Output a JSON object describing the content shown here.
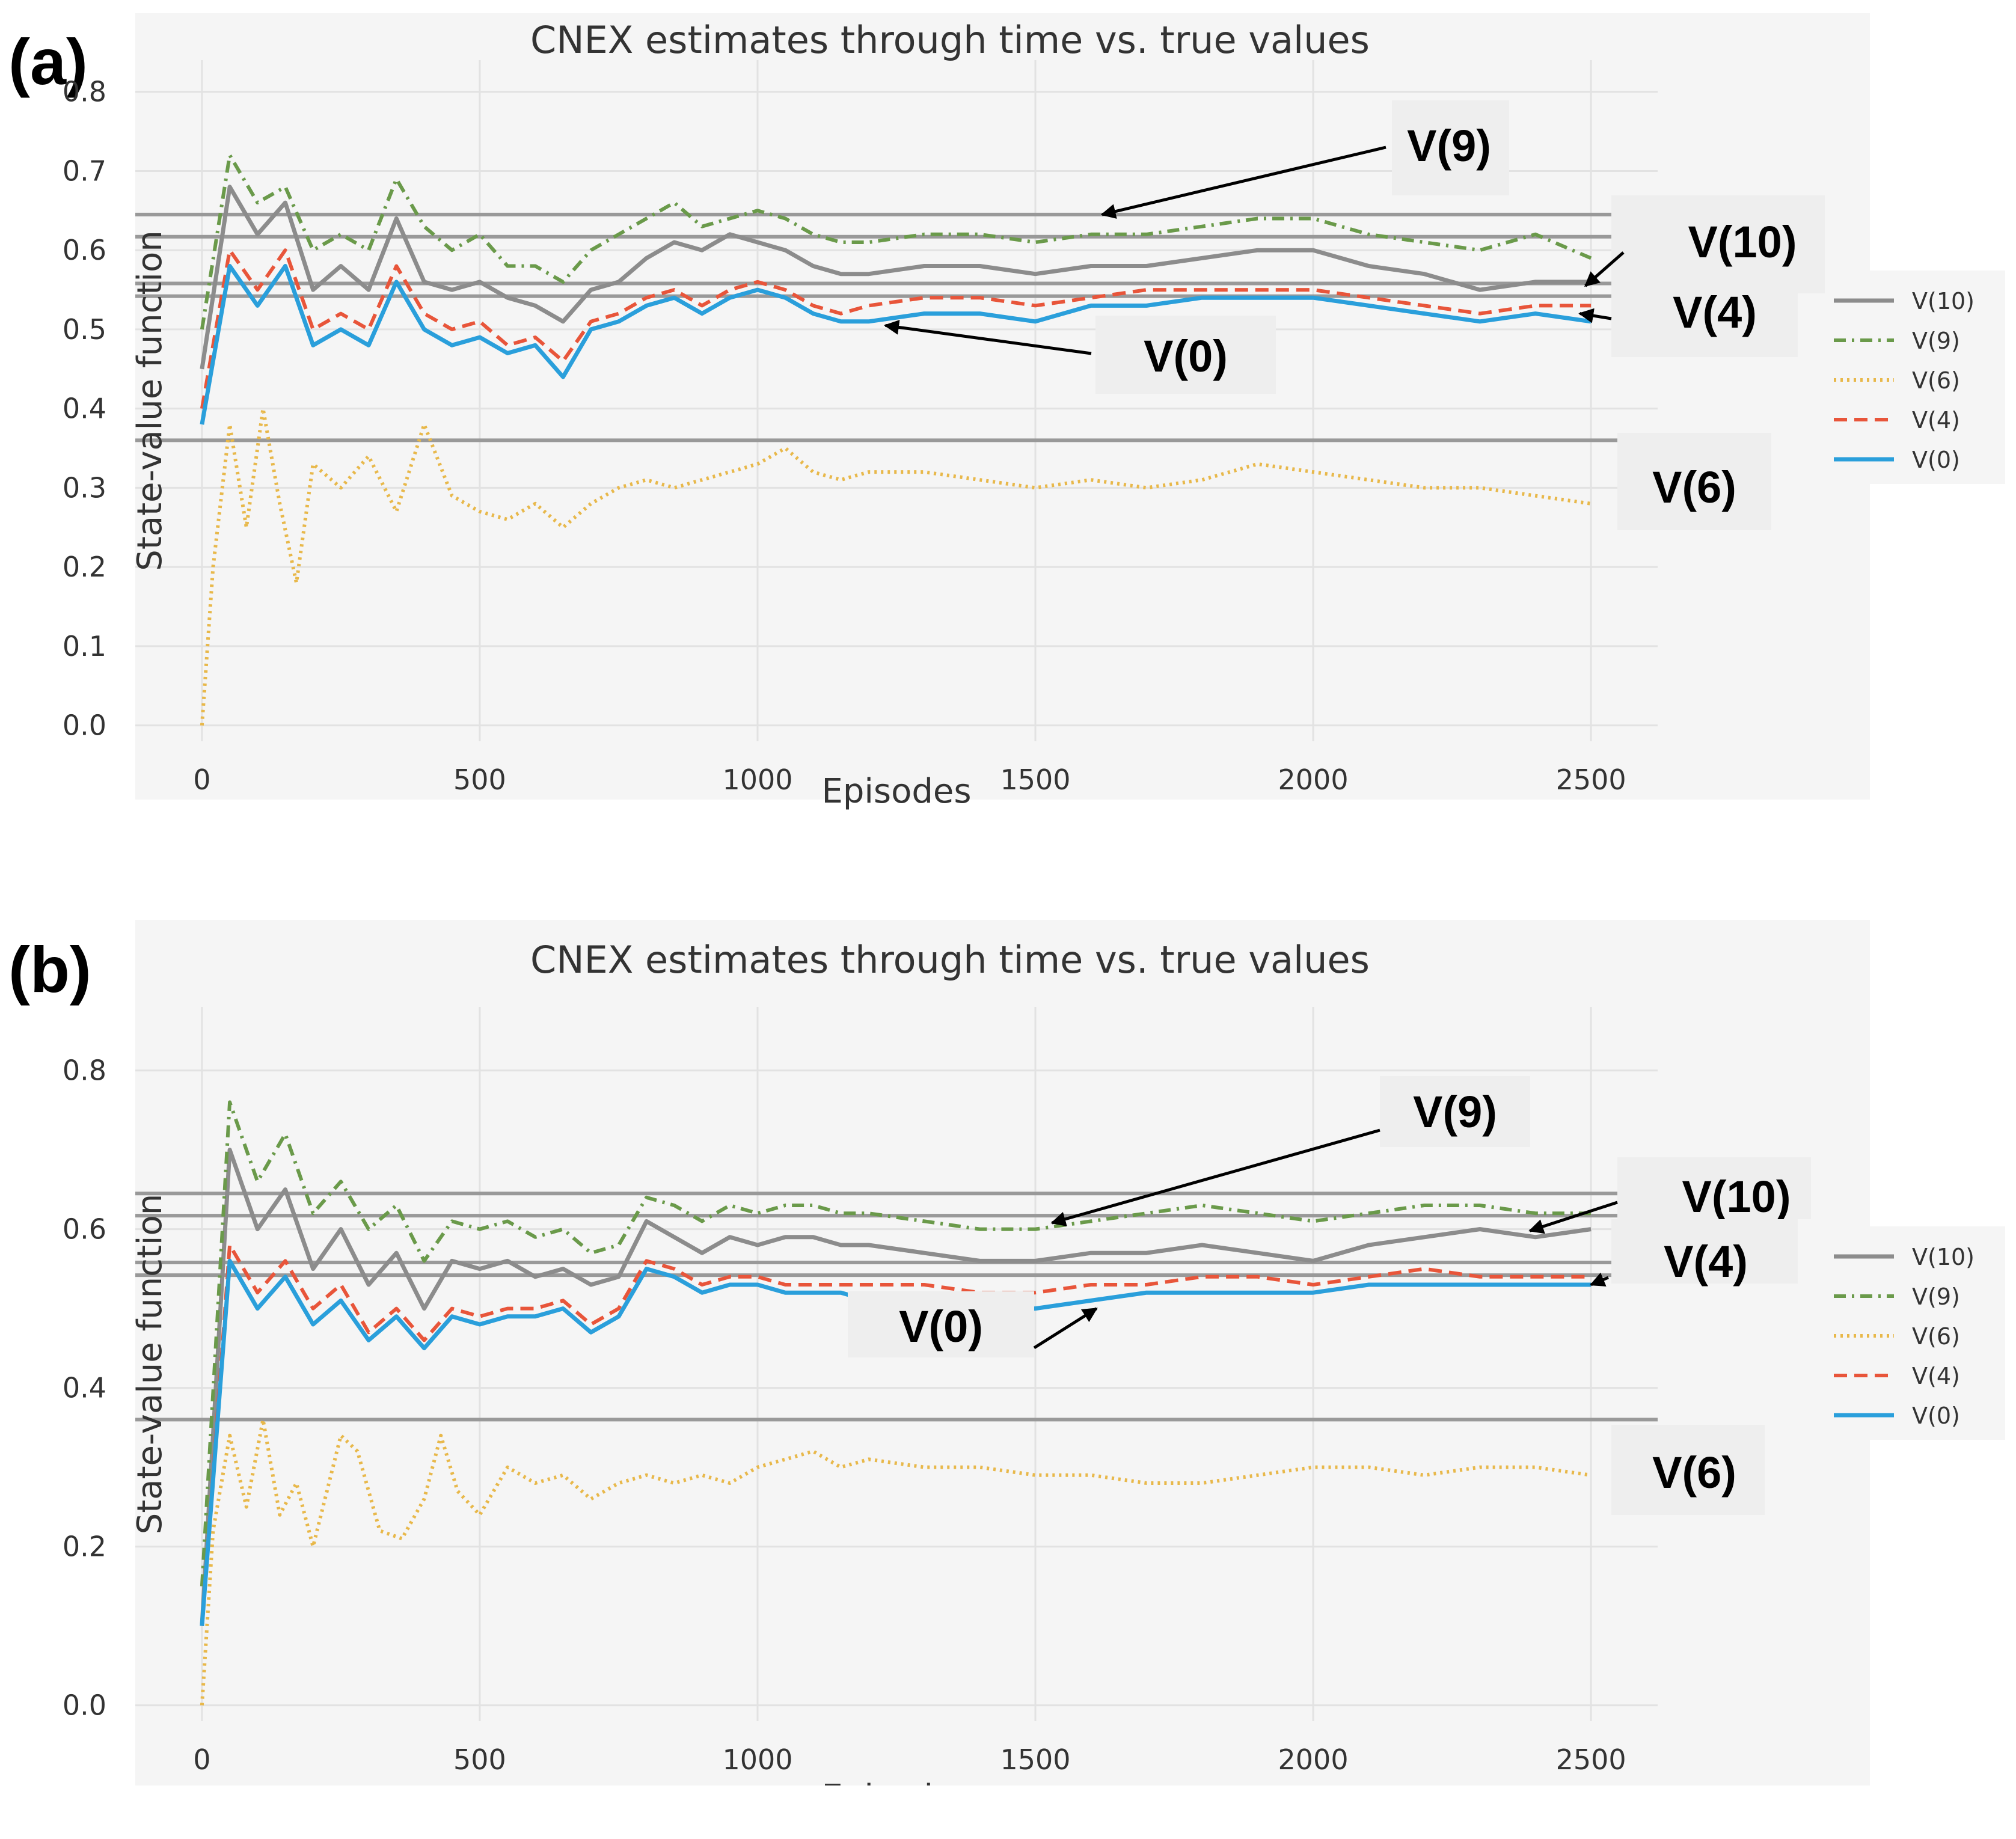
{
  "colors": {
    "v10": "#8c8c8c",
    "v9": "#6a9a4a",
    "v6": "#e8b84a",
    "v4": "#e8553a",
    "v0": "#2a9fdb",
    "true_line": "#999999"
  },
  "chart_data": [
    {
      "type": "line",
      "panel": "(a)",
      "title": "CNEX estimates through time vs. true values",
      "xlabel": "Episodes",
      "ylabel": "State-value function",
      "xlim": [
        -120,
        2620
      ],
      "ylim": [
        -0.02,
        0.84
      ],
      "xticks": [
        0,
        500,
        1000,
        1500,
        2000,
        2500
      ],
      "xtick_labels": [
        "0",
        "500",
        "1000",
        "1500",
        "2000",
        "2500"
      ],
      "yticks": [
        0.0,
        0.1,
        0.2,
        0.3,
        0.4,
        0.5,
        0.6,
        0.7,
        0.8
      ],
      "ytick_labels": [
        "0.0",
        "0.1",
        "0.2",
        "0.3",
        "0.4",
        "0.5",
        "0.6",
        "0.7",
        "0.8"
      ],
      "true_values": [
        0.645,
        0.617,
        0.558,
        0.542,
        0.36
      ],
      "series": [
        {
          "name": "V(10)",
          "key": "v10",
          "dash": "",
          "width": 7,
          "x": [
            0,
            50,
            100,
            150,
            200,
            250,
            300,
            350,
            400,
            450,
            500,
            550,
            600,
            650,
            700,
            750,
            800,
            850,
            900,
            950,
            1000,
            1050,
            1100,
            1150,
            1200,
            1300,
            1400,
            1500,
            1600,
            1700,
            1800,
            1900,
            2000,
            2100,
            2200,
            2300,
            2400,
            2500
          ],
          "y": [
            0.45,
            0.68,
            0.62,
            0.66,
            0.55,
            0.58,
            0.55,
            0.64,
            0.56,
            0.55,
            0.56,
            0.54,
            0.53,
            0.51,
            0.55,
            0.56,
            0.59,
            0.61,
            0.6,
            0.62,
            0.61,
            0.6,
            0.58,
            0.57,
            0.57,
            0.58,
            0.58,
            0.57,
            0.58,
            0.58,
            0.59,
            0.6,
            0.6,
            0.58,
            0.57,
            0.55,
            0.56,
            0.56
          ]
        },
        {
          "name": "V(9)",
          "key": "v9",
          "dash": "20 10 4 10",
          "width": 6,
          "x": [
            0,
            50,
            100,
            150,
            200,
            250,
            300,
            350,
            400,
            450,
            500,
            550,
            600,
            650,
            700,
            750,
            800,
            850,
            900,
            950,
            1000,
            1050,
            1100,
            1150,
            1200,
            1300,
            1400,
            1500,
            1600,
            1700,
            1800,
            1900,
            2000,
            2100,
            2200,
            2300,
            2400,
            2500
          ],
          "y": [
            0.5,
            0.72,
            0.66,
            0.68,
            0.6,
            0.62,
            0.6,
            0.69,
            0.63,
            0.6,
            0.62,
            0.58,
            0.58,
            0.56,
            0.6,
            0.62,
            0.64,
            0.66,
            0.63,
            0.64,
            0.65,
            0.64,
            0.62,
            0.61,
            0.61,
            0.62,
            0.62,
            0.61,
            0.62,
            0.62,
            0.63,
            0.64,
            0.64,
            0.62,
            0.61,
            0.6,
            0.62,
            0.59
          ]
        },
        {
          "name": "V(6)",
          "key": "v6",
          "dash": "4 7",
          "width": 6,
          "x": [
            0,
            20,
            50,
            80,
            110,
            140,
            170,
            200,
            250,
            300,
            350,
            400,
            450,
            500,
            550,
            600,
            650,
            700,
            750,
            800,
            850,
            900,
            950,
            1000,
            1050,
            1100,
            1150,
            1200,
            1300,
            1400,
            1500,
            1600,
            1700,
            1800,
            1900,
            2000,
            2100,
            2200,
            2300,
            2400,
            2500
          ],
          "y": [
            0.0,
            0.2,
            0.38,
            0.25,
            0.4,
            0.28,
            0.18,
            0.33,
            0.3,
            0.34,
            0.27,
            0.38,
            0.29,
            0.27,
            0.26,
            0.28,
            0.25,
            0.28,
            0.3,
            0.31,
            0.3,
            0.31,
            0.32,
            0.33,
            0.35,
            0.32,
            0.31,
            0.32,
            0.32,
            0.31,
            0.3,
            0.31,
            0.3,
            0.31,
            0.33,
            0.32,
            0.31,
            0.3,
            0.3,
            0.29,
            0.28
          ]
        },
        {
          "name": "V(4)",
          "key": "v4",
          "dash": "22 12",
          "width": 6,
          "x": [
            0,
            50,
            100,
            150,
            200,
            250,
            300,
            350,
            400,
            450,
            500,
            550,
            600,
            650,
            700,
            750,
            800,
            850,
            900,
            950,
            1000,
            1050,
            1100,
            1150,
            1200,
            1300,
            1400,
            1500,
            1600,
            1700,
            1800,
            1900,
            2000,
            2100,
            2200,
            2300,
            2400,
            2500
          ],
          "y": [
            0.4,
            0.6,
            0.55,
            0.6,
            0.5,
            0.52,
            0.5,
            0.58,
            0.52,
            0.5,
            0.51,
            0.48,
            0.49,
            0.46,
            0.51,
            0.52,
            0.54,
            0.55,
            0.53,
            0.55,
            0.56,
            0.55,
            0.53,
            0.52,
            0.53,
            0.54,
            0.54,
            0.53,
            0.54,
            0.55,
            0.55,
            0.55,
            0.55,
            0.54,
            0.53,
            0.52,
            0.53,
            0.53
          ]
        },
        {
          "name": "V(0)",
          "key": "v0",
          "dash": "",
          "width": 7,
          "x": [
            0,
            50,
            100,
            150,
            200,
            250,
            300,
            350,
            400,
            450,
            500,
            550,
            600,
            650,
            700,
            750,
            800,
            850,
            900,
            950,
            1000,
            1050,
            1100,
            1150,
            1200,
            1300,
            1400,
            1500,
            1600,
            1700,
            1800,
            1900,
            2000,
            2100,
            2200,
            2300,
            2400,
            2500
          ],
          "y": [
            0.38,
            0.58,
            0.53,
            0.58,
            0.48,
            0.5,
            0.48,
            0.56,
            0.5,
            0.48,
            0.49,
            0.47,
            0.48,
            0.44,
            0.5,
            0.51,
            0.53,
            0.54,
            0.52,
            0.54,
            0.55,
            0.54,
            0.52,
            0.51,
            0.51,
            0.52,
            0.52,
            0.51,
            0.53,
            0.53,
            0.54,
            0.54,
            0.54,
            0.53,
            0.52,
            0.51,
            0.52,
            0.51
          ]
        }
      ],
      "legend": [
        "V(10)",
        "V(9)",
        "V(6)",
        "V(4)",
        "V(0)"
      ],
      "annotations": [
        {
          "text": "V(9)",
          "x": 1620,
          "y": 0.645
        },
        {
          "text": "V(10)",
          "x": 2490,
          "y": 0.555
        },
        {
          "text": "V(4)",
          "x": 2480,
          "y": 0.52
        },
        {
          "text": "V(0)",
          "x": 1230,
          "y": 0.505
        },
        {
          "text": "V(6)"
        }
      ]
    },
    {
      "type": "line",
      "panel": "(b)",
      "title": "CNEX estimates through time vs. true values",
      "xlabel": "Episodes",
      "ylabel": "State-value function",
      "xlim": [
        -120,
        2620
      ],
      "ylim": [
        -0.02,
        0.88
      ],
      "xticks": [
        0,
        500,
        1000,
        1500,
        2000,
        2500
      ],
      "xtick_labels": [
        "0",
        "500",
        "1000",
        "1500",
        "2000",
        "2500"
      ],
      "yticks": [
        0.0,
        0.2,
        0.4,
        0.6,
        0.8
      ],
      "ytick_labels": [
        "0.0",
        "0.2",
        "0.4",
        "0.6",
        "0.8"
      ],
      "true_values": [
        0.645,
        0.617,
        0.558,
        0.542,
        0.36
      ],
      "series": [
        {
          "name": "V(10)",
          "key": "v10",
          "dash": "",
          "width": 7,
          "x": [
            0,
            50,
            100,
            150,
            200,
            250,
            300,
            350,
            400,
            450,
            500,
            550,
            600,
            650,
            700,
            750,
            800,
            850,
            900,
            950,
            1000,
            1050,
            1100,
            1150,
            1200,
            1300,
            1400,
            1500,
            1600,
            1700,
            1800,
            1900,
            2000,
            2100,
            2200,
            2300,
            2400,
            2500
          ],
          "y": [
            0.1,
            0.7,
            0.6,
            0.65,
            0.55,
            0.6,
            0.53,
            0.57,
            0.5,
            0.56,
            0.55,
            0.56,
            0.54,
            0.55,
            0.53,
            0.54,
            0.61,
            0.59,
            0.57,
            0.59,
            0.58,
            0.59,
            0.59,
            0.58,
            0.58,
            0.57,
            0.56,
            0.56,
            0.57,
            0.57,
            0.58,
            0.57,
            0.56,
            0.58,
            0.59,
            0.6,
            0.59,
            0.6
          ]
        },
        {
          "name": "V(9)",
          "key": "v9",
          "dash": "20 10 4 10",
          "width": 6,
          "x": [
            0,
            50,
            100,
            150,
            200,
            250,
            300,
            350,
            400,
            450,
            500,
            550,
            600,
            650,
            700,
            750,
            800,
            850,
            900,
            950,
            1000,
            1050,
            1100,
            1150,
            1200,
            1300,
            1400,
            1500,
            1600,
            1700,
            1800,
            1900,
            2000,
            2100,
            2200,
            2300,
            2400,
            2500
          ],
          "y": [
            0.15,
            0.76,
            0.66,
            0.72,
            0.62,
            0.66,
            0.6,
            0.63,
            0.56,
            0.61,
            0.6,
            0.61,
            0.59,
            0.6,
            0.57,
            0.58,
            0.64,
            0.63,
            0.61,
            0.63,
            0.62,
            0.63,
            0.63,
            0.62,
            0.62,
            0.61,
            0.6,
            0.6,
            0.61,
            0.62,
            0.63,
            0.62,
            0.61,
            0.62,
            0.63,
            0.63,
            0.62,
            0.62
          ]
        },
        {
          "name": "V(6)",
          "key": "v6",
          "dash": "4 7",
          "width": 6,
          "x": [
            0,
            20,
            50,
            80,
            110,
            140,
            170,
            200,
            250,
            280,
            320,
            360,
            400,
            430,
            460,
            500,
            550,
            600,
            650,
            700,
            750,
            800,
            850,
            900,
            950,
            1000,
            1050,
            1100,
            1150,
            1200,
            1300,
            1400,
            1500,
            1600,
            1700,
            1800,
            1900,
            2000,
            2100,
            2200,
            2300,
            2400,
            2500
          ],
          "y": [
            0.0,
            0.22,
            0.34,
            0.25,
            0.36,
            0.24,
            0.28,
            0.2,
            0.34,
            0.32,
            0.22,
            0.21,
            0.26,
            0.34,
            0.27,
            0.24,
            0.3,
            0.28,
            0.29,
            0.26,
            0.28,
            0.29,
            0.28,
            0.29,
            0.28,
            0.3,
            0.31,
            0.32,
            0.3,
            0.31,
            0.3,
            0.3,
            0.29,
            0.29,
            0.28,
            0.28,
            0.29,
            0.3,
            0.3,
            0.29,
            0.3,
            0.3,
            0.29
          ]
        },
        {
          "name": "V(4)",
          "key": "v4",
          "dash": "22 12",
          "width": 6,
          "x": [
            0,
            50,
            100,
            150,
            200,
            250,
            300,
            350,
            400,
            450,
            500,
            550,
            600,
            650,
            700,
            750,
            800,
            850,
            900,
            950,
            1000,
            1050,
            1100,
            1150,
            1200,
            1300,
            1400,
            1500,
            1600,
            1700,
            1800,
            1900,
            2000,
            2100,
            2200,
            2300,
            2400,
            2500
          ],
          "y": [
            0.1,
            0.58,
            0.52,
            0.56,
            0.5,
            0.53,
            0.47,
            0.5,
            0.46,
            0.5,
            0.49,
            0.5,
            0.5,
            0.51,
            0.48,
            0.5,
            0.56,
            0.55,
            0.53,
            0.54,
            0.54,
            0.53,
            0.53,
            0.53,
            0.53,
            0.53,
            0.52,
            0.52,
            0.53,
            0.53,
            0.54,
            0.54,
            0.53,
            0.54,
            0.55,
            0.54,
            0.54,
            0.54
          ]
        },
        {
          "name": "V(0)",
          "key": "v0",
          "dash": "",
          "width": 7,
          "x": [
            0,
            50,
            100,
            150,
            200,
            250,
            300,
            350,
            400,
            450,
            500,
            550,
            600,
            650,
            700,
            750,
            800,
            850,
            900,
            950,
            1000,
            1050,
            1100,
            1150,
            1200,
            1300,
            1400,
            1500,
            1600,
            1700,
            1800,
            1900,
            2000,
            2100,
            2200,
            2300,
            2400,
            2500
          ],
          "y": [
            0.1,
            0.56,
            0.5,
            0.54,
            0.48,
            0.51,
            0.46,
            0.49,
            0.45,
            0.49,
            0.48,
            0.49,
            0.49,
            0.5,
            0.47,
            0.49,
            0.55,
            0.54,
            0.52,
            0.53,
            0.53,
            0.52,
            0.52,
            0.52,
            0.51,
            0.51,
            0.5,
            0.5,
            0.51,
            0.52,
            0.52,
            0.52,
            0.52,
            0.53,
            0.53,
            0.53,
            0.53,
            0.53
          ]
        }
      ],
      "legend": [
        "V(10)",
        "V(9)",
        "V(6)",
        "V(4)",
        "V(0)"
      ],
      "annotations": [
        {
          "text": "V(9)",
          "x": 1530,
          "y": 0.608
        },
        {
          "text": "V(10)",
          "x": 2390,
          "y": 0.598
        },
        {
          "text": "V(4)",
          "x": 2500,
          "y": 0.53
        },
        {
          "text": "V(0)",
          "x": 1610,
          "y": 0.5
        },
        {
          "text": "V(6)"
        }
      ]
    }
  ]
}
